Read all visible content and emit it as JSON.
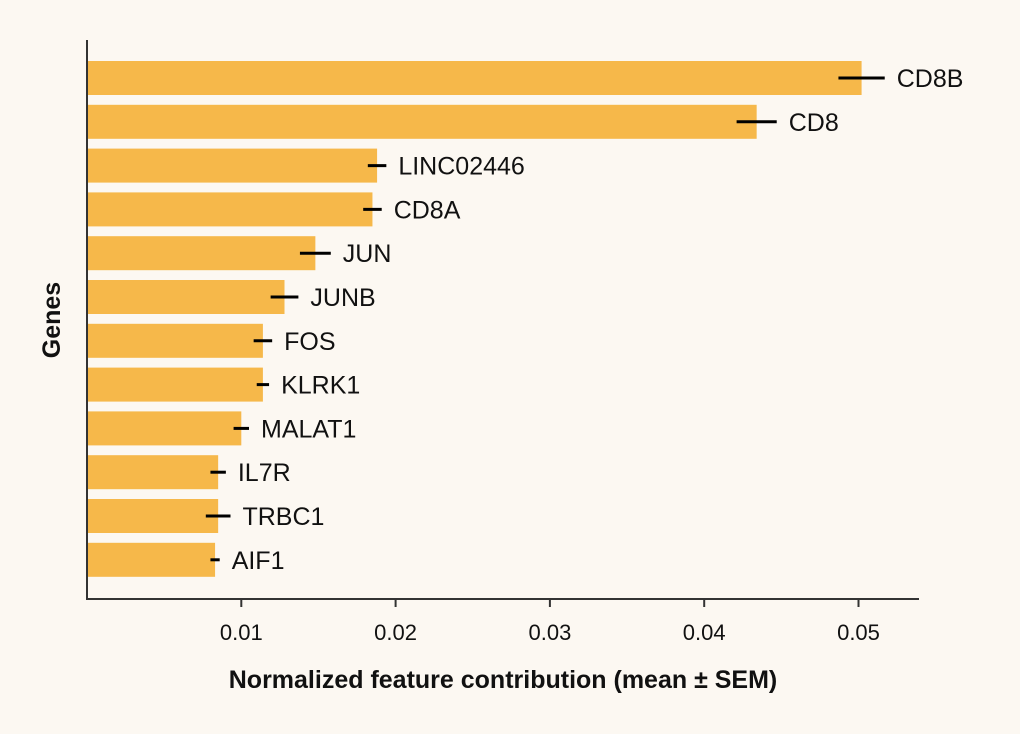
{
  "chart_data": {
    "type": "bar",
    "orientation": "horizontal",
    "categories": [
      "CD8B",
      "CD8",
      "LINC02446",
      "CD8A",
      "JUN",
      "JUNB",
      "FOS",
      "KLRK1",
      "MALAT1",
      "IL7R",
      "TRBC1",
      "AIF1"
    ],
    "values": [
      0.0502,
      0.0434,
      0.0188,
      0.0185,
      0.0148,
      0.0128,
      0.0114,
      0.0114,
      0.01,
      0.0085,
      0.0085,
      0.0083
    ],
    "errors": [
      0.0015,
      0.0013,
      0.0006,
      0.0006,
      0.001,
      0.0009,
      0.0006,
      0.0004,
      0.0005,
      0.0005,
      0.0008,
      0.0003
    ],
    "xlabel": "Normalized feature contribution (mean ± SEM)",
    "ylabel": "Genes",
    "xlim": [
      0,
      0.054
    ],
    "xticks": [
      "0.01",
      "0.02",
      "0.03",
      "0.04",
      "0.05"
    ],
    "xtick_values": [
      0.01,
      0.02,
      0.03,
      0.04,
      0.05
    ],
    "grid": false,
    "bar_color": "#f6b84a",
    "error_color": "#000000",
    "background": "#fcf8f2"
  }
}
